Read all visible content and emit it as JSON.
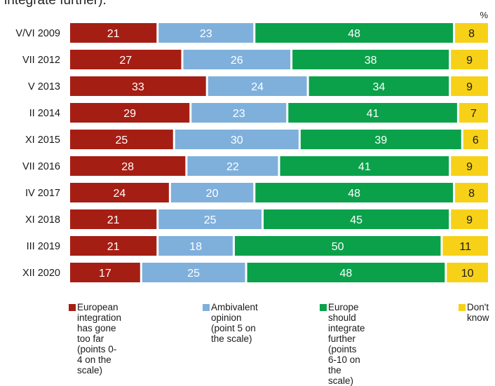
{
  "header_fragment": "integrate further).",
  "chart_data": {
    "type": "bar",
    "orientation": "horizontal",
    "stacked": true,
    "unit": "%",
    "categories": [
      "V/VI 2009",
      "VII 2012",
      "V 2013",
      "II 2014",
      "XI 2015",
      "VII 2016",
      "IV 2017",
      "XI 2018",
      "III 2019",
      "XII 2020"
    ],
    "series": [
      {
        "name": "European integration\nhas gone too far\n(points 0-4 on the scale)",
        "color": "#a51e14",
        "label_color": "#ffffff",
        "values": [
          21,
          27,
          33,
          29,
          25,
          28,
          24,
          21,
          21,
          17
        ]
      },
      {
        "name": "Ambivalent opinion\n(point 5 on the scale)",
        "color": "#7fb0dc",
        "label_color": "#ffffff",
        "values": [
          23,
          26,
          24,
          23,
          30,
          22,
          20,
          25,
          18,
          25
        ]
      },
      {
        "name": "Europe should\nintegrate further\n(points 6-10 on the scale)",
        "color": "#0aa14a",
        "label_color": "#ffffff",
        "values": [
          48,
          38,
          34,
          41,
          39,
          41,
          48,
          45,
          50,
          48
        ]
      },
      {
        "name": "Don't\nknow",
        "color": "#f7d117",
        "label_color": "#1a1a1a",
        "values": [
          8,
          9,
          9,
          7,
          6,
          9,
          8,
          9,
          11,
          10
        ]
      }
    ],
    "legend_position": "bottom",
    "grid": false
  }
}
